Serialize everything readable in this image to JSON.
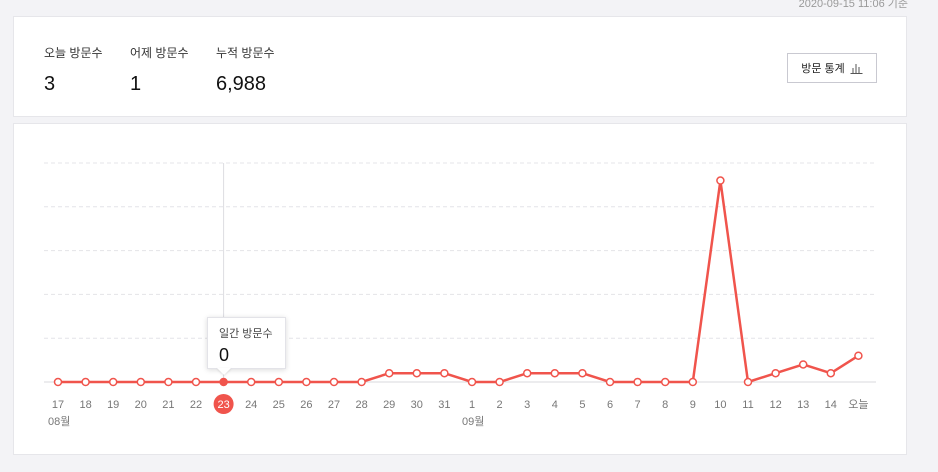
{
  "timestamp": "2020-09-15 11:06 기준",
  "summary": {
    "today_label": "오늘 방문수",
    "today_value": "3",
    "yesterday_label": "어제 방문수",
    "yesterday_value": "1",
    "total_label": "누적 방문수",
    "total_value": "6,988",
    "stats_button_label": "방문 통계",
    "stats_button_icon": "bar-chart-icon"
  },
  "tooltip": {
    "label": "일간 방문수",
    "value": "0"
  },
  "colors": {
    "line": "#f0544c",
    "highlight": "#f0544c",
    "grid": "#e4e4e8"
  },
  "chart_data": {
    "type": "line",
    "title": "",
    "xlabel": "",
    "ylabel": "",
    "categories": [
      "17",
      "18",
      "19",
      "20",
      "21",
      "22",
      "23",
      "24",
      "25",
      "26",
      "27",
      "28",
      "29",
      "30",
      "31",
      "1",
      "2",
      "3",
      "4",
      "5",
      "6",
      "7",
      "8",
      "9",
      "10",
      "11",
      "12",
      "13",
      "14",
      "오늘"
    ],
    "month_labels": [
      {
        "label": "08월",
        "at_category_index": 0
      },
      {
        "label": "09월",
        "at_category_index": 15
      }
    ],
    "series": [
      {
        "values": [
          0,
          0,
          0,
          0,
          0,
          0,
          0,
          0,
          0,
          0,
          0,
          0,
          1,
          1,
          1,
          0,
          0,
          1,
          1,
          1,
          0,
          0,
          0,
          0,
          23,
          0,
          1,
          2,
          1,
          3
        ]
      }
    ],
    "ylim": [
      0,
      25
    ],
    "gridlines": 5,
    "grid": true,
    "highlighted_index": 6
  }
}
